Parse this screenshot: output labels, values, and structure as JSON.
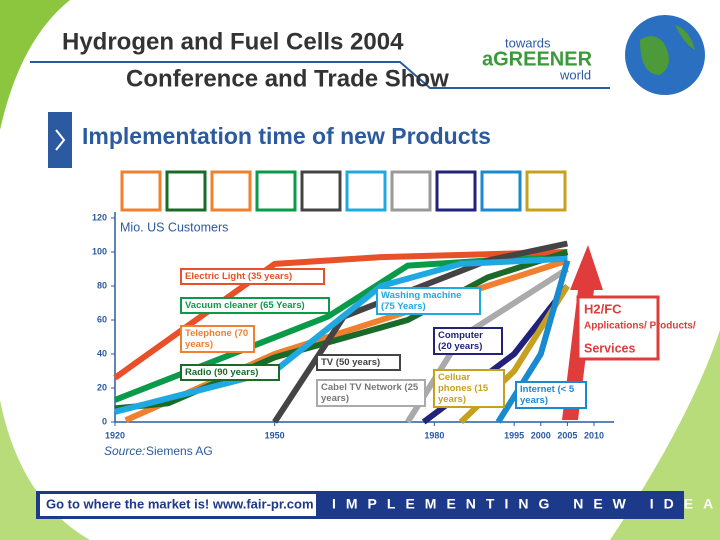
{
  "slide": {
    "title_line1": "Hydrogen and Fuel Cells 2004",
    "title_line2": "Conference and Trade Show",
    "logo_towards": "towards",
    "logo_greener": "aGREENER",
    "logo_world": "world",
    "heading": "Implementation time of new Products",
    "source_label": "Source:",
    "source": "Siemens AG",
    "h2_title": "H2/FC",
    "h2_sub": "Applications/ Products/",
    "h2_services": "Services",
    "footer_left": "Go to where the market is!  www.fair-pr.com",
    "footer_right": "IMPLEMENTING NEW IDEAS"
  },
  "chart_data": {
    "type": "line",
    "y_label": "Mio. US Customers",
    "xlim": [
      1920,
      2010
    ],
    "xticks": [
      1920,
      1950,
      1980,
      1995,
      2000,
      2005,
      2010
    ],
    "ylim": [
      0,
      120
    ],
    "yticks": [
      0,
      20,
      40,
      60,
      80,
      100,
      120
    ],
    "series": [
      {
        "name": "Electric Light (35 years)",
        "color": "#e8502a",
        "x": [
          1920,
          1950,
          1970,
          2005
        ],
        "values": [
          26,
          93,
          97,
          100
        ]
      },
      {
        "name": "Vacuum cleaner (65 Years)",
        "color": "#0a9a4a",
        "x": [
          1920,
          1960,
          1975,
          1990,
          2005
        ],
        "values": [
          13,
          62,
          92,
          95,
          97
        ]
      },
      {
        "name": "Telephone (70 years)",
        "color": "#f08030",
        "x": [
          1922,
          1950,
          1980,
          2005
        ],
        "values": [
          1,
          40,
          70,
          95
        ]
      },
      {
        "name": "Radio (90 years)",
        "color": "#1a6b2a",
        "x": [
          1920,
          1930,
          1950,
          1975,
          1990,
          2005
        ],
        "values": [
          8,
          11,
          38,
          60,
          85,
          100
        ]
      },
      {
        "name": "TV (50 years)",
        "color": "#444444",
        "x": [
          1950,
          1963,
          1990,
          2005
        ],
        "values": [
          0,
          62,
          95,
          105
        ]
      },
      {
        "name": "Washing machine (75 Years)",
        "color": "#20a8e0",
        "x": [
          1920,
          1950,
          1970,
          1985,
          2005
        ],
        "values": [
          6,
          30,
          80,
          93,
          96
        ]
      },
      {
        "name": "Cabel TV Network (25 years)",
        "color": "#aaaaaa",
        "x": [
          1975,
          1985,
          2005
        ],
        "values": [
          0,
          50,
          90
        ]
      },
      {
        "name": "Computer (20 years)",
        "color": "#22227a",
        "x": [
          1978,
          1995,
          2005
        ],
        "values": [
          0,
          40,
          80
        ]
      },
      {
        "name": "Celluar phones (15 years)",
        "color": "#c8a020",
        "x": [
          1985,
          1995,
          2005
        ],
        "values": [
          0,
          30,
          80
        ]
      },
      {
        "name": "Internet (< 5 years)",
        "color": "#1a8ad0",
        "x": [
          1992,
          2000,
          2005
        ],
        "values": [
          0,
          40,
          95
        ]
      }
    ]
  }
}
